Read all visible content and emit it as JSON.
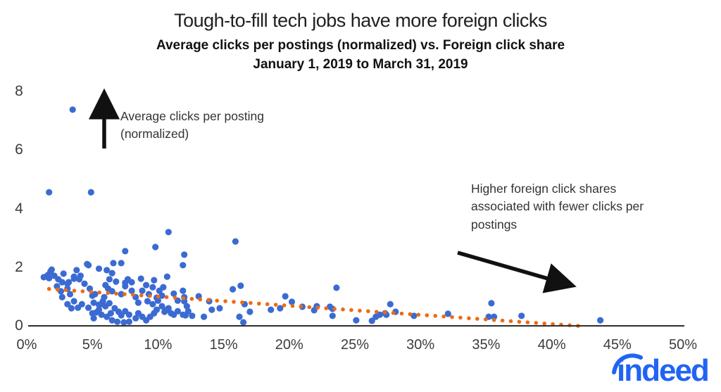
{
  "chart_data": {
    "type": "scatter",
    "title": "Tough-to-fill tech jobs have more foreign clicks",
    "subtitle": "Average clicks per postings (normalized) vs. Foreign click share",
    "date_range": "January 1, 2019 to March 31, 2019",
    "xlabel": "Foreign click share",
    "ylabel": "Average clicks per posting (normalized)",
    "xlim": [
      0,
      50
    ],
    "ylim": [
      0,
      8
    ],
    "x_tick_labels": [
      "0%",
      "5%",
      "10%",
      "15%",
      "20%",
      "25%",
      "30%",
      "35%",
      "40%",
      "45%",
      "50%"
    ],
    "y_tick_labels": [
      "0",
      "2",
      "4",
      "6",
      "8"
    ],
    "grid": false,
    "legend": "none",
    "point_color": "#3b6bd2",
    "trend_color": "#ee6b11",
    "axis_color": "#2d2d2d",
    "annotations": {
      "y_axis_note": "Average clicks per posting (normalized)",
      "trend_note": "Higher foreign click shares associated with fewer clicks per postings"
    },
    "trendline": {
      "style": "dotted",
      "x_start": 1.7,
      "y_start": 1.26,
      "x_end": 42.0,
      "y_end": 0.0
    },
    "points": [
      [
        3.5,
        7.38
      ],
      [
        1.7,
        4.56
      ],
      [
        4.9,
        4.56
      ],
      [
        10.8,
        3.2
      ],
      [
        15.9,
        2.88
      ],
      [
        9.8,
        2.69
      ],
      [
        7.5,
        2.55
      ],
      [
        12.0,
        2.43
      ],
      [
        11.9,
        2.07
      ],
      [
        4.6,
        2.11
      ],
      [
        6.6,
        2.14
      ],
      [
        7.2,
        2.14
      ],
      [
        4.7,
        2.07
      ],
      [
        5.5,
        1.95
      ],
      [
        6.1,
        1.9
      ],
      [
        3.8,
        1.9
      ],
      [
        1.9,
        1.92
      ],
      [
        1.8,
        1.85
      ],
      [
        1.6,
        1.73
      ],
      [
        1.3,
        1.66
      ],
      [
        4.1,
        1.71
      ],
      [
        3.6,
        1.61
      ],
      [
        10.7,
        1.68
      ],
      [
        8.7,
        1.61
      ],
      [
        9.7,
        1.56
      ],
      [
        7.5,
        1.47
      ],
      [
        2.7,
        1.49
      ],
      [
        3.2,
        1.49
      ],
      [
        3.1,
        1.44
      ],
      [
        4.0,
        1.59
      ],
      [
        1.7,
        1.63
      ],
      [
        2.3,
        1.35
      ],
      [
        2.6,
        1.18
      ],
      [
        2.7,
        0.98
      ],
      [
        3.3,
        1.08
      ],
      [
        3.6,
        1.68
      ],
      [
        4.8,
        1.27
      ],
      [
        5.0,
        1.03
      ],
      [
        3.6,
        0.84
      ],
      [
        3.1,
        0.74
      ],
      [
        3.4,
        0.6
      ],
      [
        3.9,
        0.62
      ],
      [
        4.2,
        0.74
      ],
      [
        4.7,
        0.62
      ],
      [
        5.0,
        0.43
      ],
      [
        5.5,
        0.55
      ],
      [
        5.7,
        0.74
      ],
      [
        5.9,
        0.98
      ],
      [
        6.2,
        1.27
      ],
      [
        6.3,
        1.59
      ],
      [
        6.5,
        1.8
      ],
      [
        6.8,
        1.51
      ],
      [
        7.5,
        1.35
      ],
      [
        7.7,
        1.59
      ],
      [
        8.0,
        1.2
      ],
      [
        8.3,
        0.98
      ],
      [
        8.5,
        0.79
      ],
      [
        8.8,
        1.2
      ],
      [
        9.1,
        1.39
      ],
      [
        9.3,
        1.08
      ],
      [
        9.6,
        1.32
      ],
      [
        9.9,
        0.96
      ],
      [
        10.1,
        1.2
      ],
      [
        11.9,
        1.2
      ],
      [
        12.0,
        0.98
      ],
      [
        13.1,
        1.01
      ],
      [
        15.7,
        1.25
      ],
      [
        16.3,
        1.37
      ],
      [
        13.9,
        0.84
      ],
      [
        14.1,
        0.55
      ],
      [
        14.7,
        0.6
      ],
      [
        13.5,
        0.31
      ],
      [
        12.1,
        0.36
      ],
      [
        12.6,
        0.34
      ],
      [
        10.7,
        0.55
      ],
      [
        11.0,
        0.43
      ],
      [
        16.6,
        0.74
      ],
      [
        17.0,
        0.48
      ],
      [
        16.2,
        0.31
      ],
      [
        16.5,
        0.12
      ],
      [
        19.7,
        1.01
      ],
      [
        18.6,
        0.55
      ],
      [
        19.3,
        0.6
      ],
      [
        20.2,
        0.82
      ],
      [
        21.0,
        0.65
      ],
      [
        21.9,
        0.53
      ],
      [
        23.6,
        1.3
      ],
      [
        23.1,
        0.65
      ],
      [
        23.3,
        0.58
      ],
      [
        22.1,
        0.67
      ],
      [
        23.3,
        0.34
      ],
      [
        25.1,
        0.19
      ],
      [
        26.3,
        0.17
      ],
      [
        26.6,
        0.31
      ],
      [
        26.9,
        0.38
      ],
      [
        27.4,
        0.38
      ],
      [
        27.7,
        0.74
      ],
      [
        28.1,
        0.48
      ],
      [
        29.5,
        0.34
      ],
      [
        27.3,
        0.43
      ],
      [
        32.1,
        0.41
      ],
      [
        35.4,
        0.77
      ],
      [
        35.2,
        0.31
      ],
      [
        35.6,
        0.31
      ],
      [
        37.7,
        0.34
      ],
      [
        43.7,
        0.19
      ],
      [
        5.1,
        0.79
      ],
      [
        5.5,
        0.72
      ],
      [
        5.8,
        0.84
      ],
      [
        6.0,
        0.67
      ],
      [
        6.3,
        0.77
      ],
      [
        5.3,
        0.46
      ],
      [
        5.7,
        0.38
      ],
      [
        5.1,
        0.26
      ],
      [
        6.1,
        0.31
      ],
      [
        6.4,
        0.43
      ],
      [
        6.7,
        0.6
      ],
      [
        7.0,
        0.48
      ],
      [
        7.2,
        0.36
      ],
      [
        7.5,
        0.5
      ],
      [
        7.8,
        0.38
      ],
      [
        6.5,
        0.19
      ],
      [
        6.9,
        0.14
      ],
      [
        7.4,
        0.12
      ],
      [
        7.8,
        0.14
      ],
      [
        8.3,
        0.26
      ],
      [
        8.5,
        0.43
      ],
      [
        8.8,
        0.31
      ],
      [
        9.1,
        0.19
      ],
      [
        9.4,
        0.31
      ],
      [
        9.7,
        0.43
      ],
      [
        9.9,
        0.55
      ],
      [
        10.3,
        0.67
      ],
      [
        10.5,
        0.48
      ],
      [
        10.8,
        0.6
      ],
      [
        11.2,
        0.38
      ],
      [
        11.5,
        0.5
      ],
      [
        11.9,
        0.38
      ],
      [
        12.2,
        0.67
      ],
      [
        12.3,
        0.5
      ],
      [
        9.2,
        0.84
      ],
      [
        9.6,
        0.74
      ],
      [
        10.0,
        0.86
      ],
      [
        11.5,
        0.86
      ],
      [
        12.0,
        0.84
      ],
      [
        4.4,
        1.44
      ],
      [
        5.2,
        1.08
      ],
      [
        6.0,
        1.39
      ],
      [
        7.2,
        1.08
      ],
      [
        8.0,
        1.49
      ],
      [
        3.1,
        1.27
      ],
      [
        2.4,
        1.59
      ],
      [
        2.1,
        1.71
      ],
      [
        2.8,
        1.78
      ],
      [
        6.5,
        1.18
      ],
      [
        10.3,
        1.03
      ],
      [
        11.2,
        1.1
      ],
      [
        10.4,
        1.32
      ]
    ]
  },
  "logo": {
    "brand": "indeed",
    "color": "#2164f3"
  }
}
